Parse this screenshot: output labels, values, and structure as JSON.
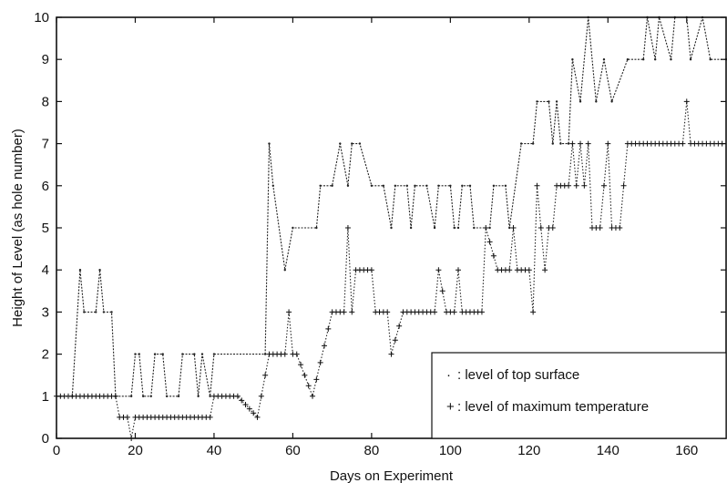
{
  "chart_data": {
    "type": "line",
    "title": "",
    "xlabel": "Days on Experiment",
    "ylabel": "Height of Level (as hole number)",
    "xlim": [
      0,
      170
    ],
    "ylim": [
      0,
      10
    ],
    "xticks": [
      "0",
      "20",
      "40",
      "60",
      "80",
      "100",
      "120",
      "140",
      "160"
    ],
    "yticks": [
      "0",
      "1",
      "2",
      "3",
      "4",
      "5",
      "6",
      "7",
      "8",
      "9",
      "10"
    ],
    "grid": false,
    "legend_position": "bottom-right",
    "series": [
      {
        "name": "level of top surface",
        "marker": "·",
        "points": [
          [
            4,
            1
          ],
          [
            6,
            4
          ],
          [
            7,
            3
          ],
          [
            10,
            3
          ],
          [
            11,
            4
          ],
          [
            12,
            3
          ],
          [
            14,
            3
          ],
          [
            15,
            1
          ],
          [
            19,
            1
          ],
          [
            20,
            2
          ],
          [
            21,
            2
          ],
          [
            22,
            1
          ],
          [
            24,
            1
          ],
          [
            25,
            2
          ],
          [
            27,
            2
          ],
          [
            28,
            1
          ],
          [
            31,
            1
          ],
          [
            32,
            2
          ],
          [
            35,
            2
          ],
          [
            36,
            1
          ],
          [
            37,
            2
          ],
          [
            39,
            1
          ],
          [
            40,
            2
          ],
          [
            53,
            2
          ],
          [
            54,
            7
          ],
          [
            55,
            6
          ],
          [
            58,
            4
          ],
          [
            60,
            5
          ],
          [
            66,
            5
          ],
          [
            67,
            6
          ],
          [
            70,
            6
          ],
          [
            72,
            7
          ],
          [
            74,
            6
          ],
          [
            75,
            7
          ],
          [
            77,
            7
          ],
          [
            80,
            6
          ],
          [
            83,
            6
          ],
          [
            85,
            5
          ],
          [
            86,
            6
          ],
          [
            89,
            6
          ],
          [
            90,
            5
          ],
          [
            91,
            6
          ],
          [
            94,
            6
          ],
          [
            96,
            5
          ],
          [
            97,
            6
          ],
          [
            100,
            6
          ],
          [
            101,
            5
          ],
          [
            102,
            5
          ],
          [
            103,
            6
          ],
          [
            105,
            6
          ],
          [
            106,
            5
          ],
          [
            110,
            5
          ],
          [
            111,
            6
          ],
          [
            114,
            6
          ],
          [
            115,
            5
          ],
          [
            118,
            7
          ],
          [
            121,
            7
          ],
          [
            122,
            8
          ],
          [
            125,
            8
          ],
          [
            126,
            7
          ],
          [
            127,
            8
          ],
          [
            128,
            7
          ],
          [
            130,
            7
          ],
          [
            131,
            9
          ],
          [
            133,
            8
          ],
          [
            135,
            10
          ],
          [
            137,
            8
          ],
          [
            139,
            9
          ],
          [
            141,
            8
          ],
          [
            145,
            9
          ],
          [
            149,
            9
          ],
          [
            150,
            10
          ],
          [
            152,
            9
          ],
          [
            153,
            10
          ],
          [
            156,
            9
          ],
          [
            157,
            10
          ],
          [
            160,
            10
          ],
          [
            161,
            9
          ],
          [
            164,
            10
          ],
          [
            166,
            9
          ],
          [
            170,
            9
          ]
        ]
      },
      {
        "name": "level of maximum temperature",
        "marker": "+",
        "points": [
          [
            0,
            1
          ],
          [
            15,
            1
          ],
          [
            16,
            0.5
          ],
          [
            18,
            0.5
          ],
          [
            19,
            0
          ],
          [
            20,
            0.5
          ],
          [
            39,
            0.5
          ],
          [
            40,
            1
          ],
          [
            44,
            1
          ],
          [
            46,
            1
          ],
          [
            51,
            0.5
          ],
          [
            54,
            2
          ],
          [
            58,
            2
          ],
          [
            59,
            3
          ],
          [
            60,
            2
          ],
          [
            61,
            2
          ],
          [
            65,
            1
          ],
          [
            70,
            3
          ],
          [
            73,
            3
          ],
          [
            74,
            5
          ],
          [
            75,
            3
          ],
          [
            76,
            4
          ],
          [
            80,
            4
          ],
          [
            81,
            3
          ],
          [
            84,
            3
          ],
          [
            85,
            2
          ],
          [
            88,
            3
          ],
          [
            96,
            3
          ],
          [
            97,
            4
          ],
          [
            99,
            3
          ],
          [
            101,
            3
          ],
          [
            102,
            4
          ],
          [
            103,
            3
          ],
          [
            108,
            3
          ],
          [
            109,
            5
          ],
          [
            112,
            4
          ],
          [
            115,
            4
          ],
          [
            116,
            5
          ],
          [
            117,
            4
          ],
          [
            120,
            4
          ],
          [
            121,
            3
          ],
          [
            122,
            6
          ],
          [
            123,
            5
          ],
          [
            124,
            4
          ],
          [
            125,
            5
          ],
          [
            126,
            5
          ],
          [
            127,
            6
          ],
          [
            130,
            6
          ],
          [
            131,
            7
          ],
          [
            132,
            6
          ],
          [
            133,
            7
          ],
          [
            134,
            6
          ],
          [
            135,
            7
          ],
          [
            136,
            5
          ],
          [
            138,
            5
          ],
          [
            139,
            6
          ],
          [
            140,
            7
          ],
          [
            141,
            5
          ],
          [
            143,
            5
          ],
          [
            144,
            6
          ],
          [
            145,
            7
          ],
          [
            150,
            7
          ],
          [
            159,
            7
          ],
          [
            160,
            8
          ],
          [
            161,
            7
          ],
          [
            170,
            7
          ]
        ]
      }
    ]
  },
  "legend": {
    "entries": [
      {
        "marker": "· ",
        "label": ": level of top surface"
      },
      {
        "marker": "+",
        "label": ": level of maximum temperature"
      }
    ]
  }
}
